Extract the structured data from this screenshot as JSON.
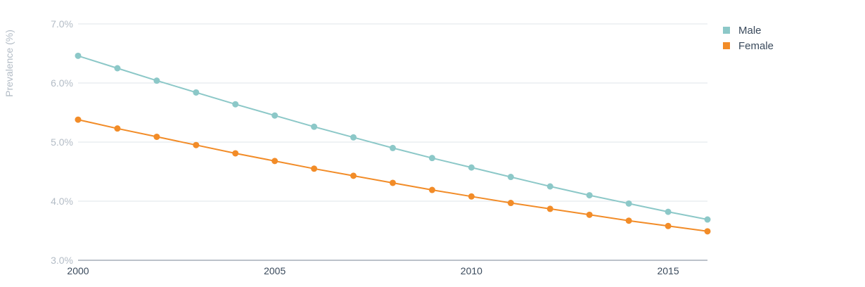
{
  "chart_data": {
    "type": "line",
    "ylabel": "Prevalence (%)",
    "xlabel": "",
    "title": "",
    "ylim": [
      3.0,
      7.0
    ],
    "xlim": [
      2000,
      2016
    ],
    "y_ticks": [
      "3.0%",
      "4.0%",
      "5.0%",
      "6.0%",
      "7.0%"
    ],
    "y_tick_values": [
      3.0,
      4.0,
      5.0,
      6.0,
      7.0
    ],
    "x_ticks": [
      "2000",
      "2005",
      "2010",
      "2015"
    ],
    "x_tick_values": [
      2000,
      2005,
      2010,
      2015
    ],
    "grid": true,
    "legend_position": "top-right",
    "x": [
      2000,
      2001,
      2002,
      2003,
      2004,
      2005,
      2006,
      2007,
      2008,
      2009,
      2010,
      2011,
      2012,
      2013,
      2014,
      2015,
      2016
    ],
    "series": [
      {
        "name": "Male",
        "color": "#8cc8c8",
        "values": [
          6.46,
          6.25,
          6.04,
          5.84,
          5.64,
          5.45,
          5.26,
          5.08,
          4.9,
          4.73,
          4.57,
          4.41,
          4.25,
          4.1,
          3.96,
          3.82,
          3.69
        ]
      },
      {
        "name": "Female",
        "color": "#f28c28",
        "values": [
          5.38,
          5.23,
          5.09,
          4.95,
          4.81,
          4.68,
          4.55,
          4.43,
          4.31,
          4.19,
          4.08,
          3.97,
          3.87,
          3.77,
          3.67,
          3.58,
          3.49
        ]
      }
    ]
  }
}
